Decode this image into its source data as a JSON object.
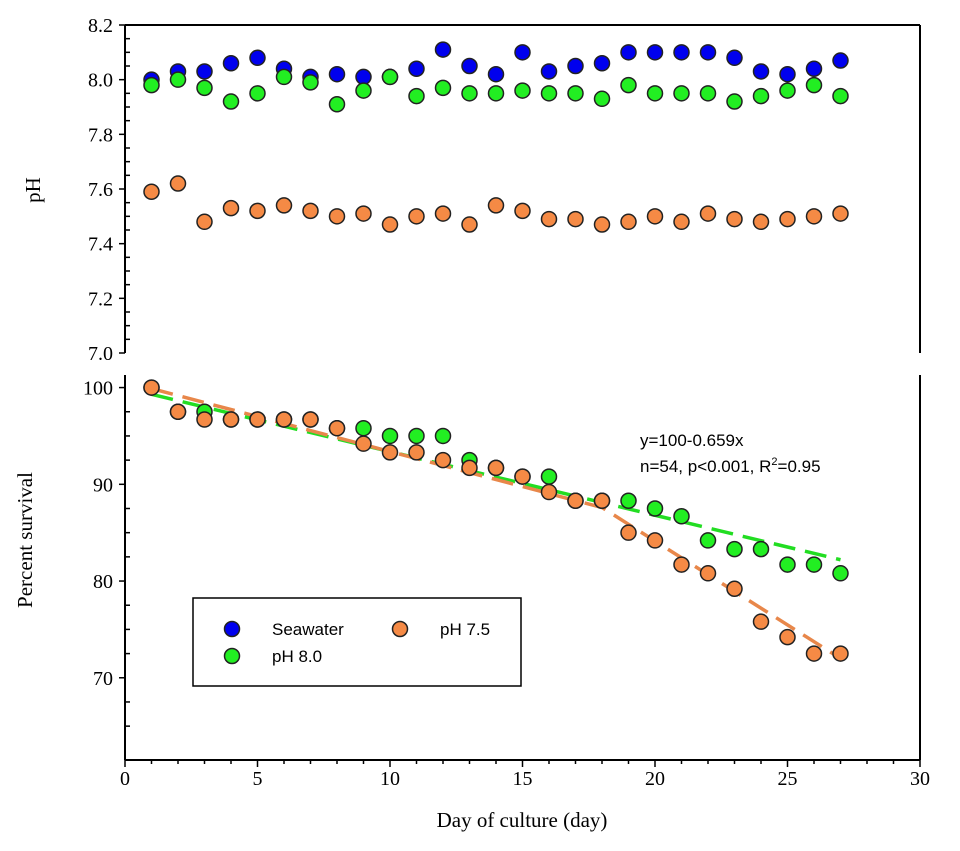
{
  "chart_data": [
    {
      "type": "scatter",
      "panel": "top",
      "ylabel": "pH",
      "ylim": [
        7.0,
        8.2
      ],
      "yticks": [
        "7.0",
        "7.2",
        "7.4",
        "7.6",
        "7.8",
        "8.0",
        "8.2"
      ],
      "xlim": [
        0,
        30
      ],
      "series": [
        {
          "name": "Seawater",
          "color": "#0000ee",
          "x": [
            1,
            2,
            3,
            4,
            5,
            6,
            7,
            8,
            9,
            10,
            11,
            12,
            13,
            14,
            15,
            16,
            17,
            18,
            19,
            20,
            21,
            22,
            23,
            24,
            25,
            26,
            27
          ],
          "y": [
            8.0,
            8.03,
            8.03,
            8.06,
            8.08,
            8.04,
            8.01,
            8.02,
            8.01,
            8.01,
            8.04,
            8.11,
            8.05,
            8.02,
            8.1,
            8.03,
            8.05,
            8.06,
            8.1,
            8.1,
            8.1,
            8.1,
            8.08,
            8.03,
            8.02,
            8.04,
            8.07
          ]
        },
        {
          "name": "pH 8.0",
          "color": "#22ee22",
          "x": [
            1,
            2,
            3,
            4,
            5,
            6,
            7,
            8,
            9,
            10,
            11,
            12,
            13,
            14,
            15,
            16,
            17,
            18,
            19,
            20,
            21,
            22,
            23,
            24,
            25,
            26,
            27
          ],
          "y": [
            7.98,
            8.0,
            7.97,
            7.92,
            7.95,
            8.01,
            7.99,
            7.91,
            7.96,
            8.01,
            7.94,
            7.97,
            7.95,
            7.95,
            7.96,
            7.95,
            7.95,
            7.93,
            7.98,
            7.95,
            7.95,
            7.95,
            7.92,
            7.94,
            7.96,
            7.98,
            7.94
          ]
        },
        {
          "name": "pH 7.5",
          "color": "#f58a45",
          "x": [
            1,
            2,
            3,
            4,
            5,
            6,
            7,
            8,
            9,
            10,
            11,
            12,
            13,
            14,
            15,
            16,
            17,
            18,
            19,
            20,
            21,
            22,
            23,
            24,
            25,
            26,
            27
          ],
          "y": [
            7.59,
            7.62,
            7.48,
            7.53,
            7.52,
            7.54,
            7.52,
            7.5,
            7.51,
            7.47,
            7.5,
            7.51,
            7.47,
            7.54,
            7.52,
            7.49,
            7.49,
            7.47,
            7.48,
            7.5,
            7.48,
            7.51,
            7.49,
            7.48,
            7.49,
            7.5,
            7.51
          ]
        }
      ]
    },
    {
      "type": "scatter",
      "panel": "bottom",
      "ylabel": "Percent survival",
      "xlabel": "Day of culture (day)",
      "ylim": [
        61.5,
        101.3
      ],
      "yticks": [
        "70",
        "80",
        "90",
        "100"
      ],
      "xlim": [
        0,
        30
      ],
      "xticks": [
        "0",
        "5",
        "10",
        "15",
        "20",
        "25",
        "30"
      ],
      "series": [
        {
          "name": "pH 8.0",
          "color": "#22ee22",
          "x": [
            1,
            2,
            3,
            4,
            5,
            6,
            7,
            8,
            9,
            10,
            11,
            12,
            13,
            14,
            15,
            16,
            17,
            18,
            19,
            20,
            21,
            22,
            23,
            24,
            25,
            26,
            27
          ],
          "y": [
            100,
            97.5,
            97.5,
            96.7,
            96.7,
            96.7,
            96.7,
            95.8,
            95.8,
            95,
            95,
            95,
            92.5,
            91.7,
            90.8,
            90.8,
            88.3,
            88.3,
            88.3,
            87.5,
            86.7,
            84.2,
            83.3,
            83.3,
            81.7,
            81.7,
            80.8
          ]
        },
        {
          "name": "pH 7.5",
          "color": "#f58a45",
          "x": [
            1,
            2,
            3,
            4,
            5,
            6,
            7,
            8,
            9,
            10,
            11,
            12,
            13,
            14,
            15,
            16,
            17,
            18,
            19,
            20,
            21,
            22,
            23,
            24,
            25,
            26,
            27
          ],
          "y": [
            100,
            97.5,
            96.7,
            96.7,
            96.7,
            96.7,
            96.7,
            95.8,
            94.2,
            93.3,
            93.3,
            92.5,
            91.7,
            91.7,
            90.8,
            89.2,
            88.3,
            88.3,
            85,
            84.2,
            81.7,
            80.8,
            79.2,
            75.8,
            74.2,
            72.5,
            72.5
          ]
        }
      ],
      "fits": [
        {
          "name": "pH 8.0 fit",
          "color": "#22dd22",
          "x": [
            1,
            27
          ],
          "y": [
            99.3,
            82.2
          ]
        },
        {
          "name": "pH 7.5 fit",
          "color": "#e8874a",
          "x": [
            1,
            18,
            27
          ],
          "y": [
            99.9,
            87.6,
            72.0
          ]
        }
      ],
      "annotation": {
        "line1": "y=100-0.659x",
        "line2a": "n=54, p<0.001, R",
        "sup": "2",
        "line2b": "=0.95"
      },
      "legend": {
        "placement": "bottom-left",
        "entries": [
          "Seawater",
          "pH 7.5",
          "pH 8.0"
        ]
      }
    }
  ]
}
